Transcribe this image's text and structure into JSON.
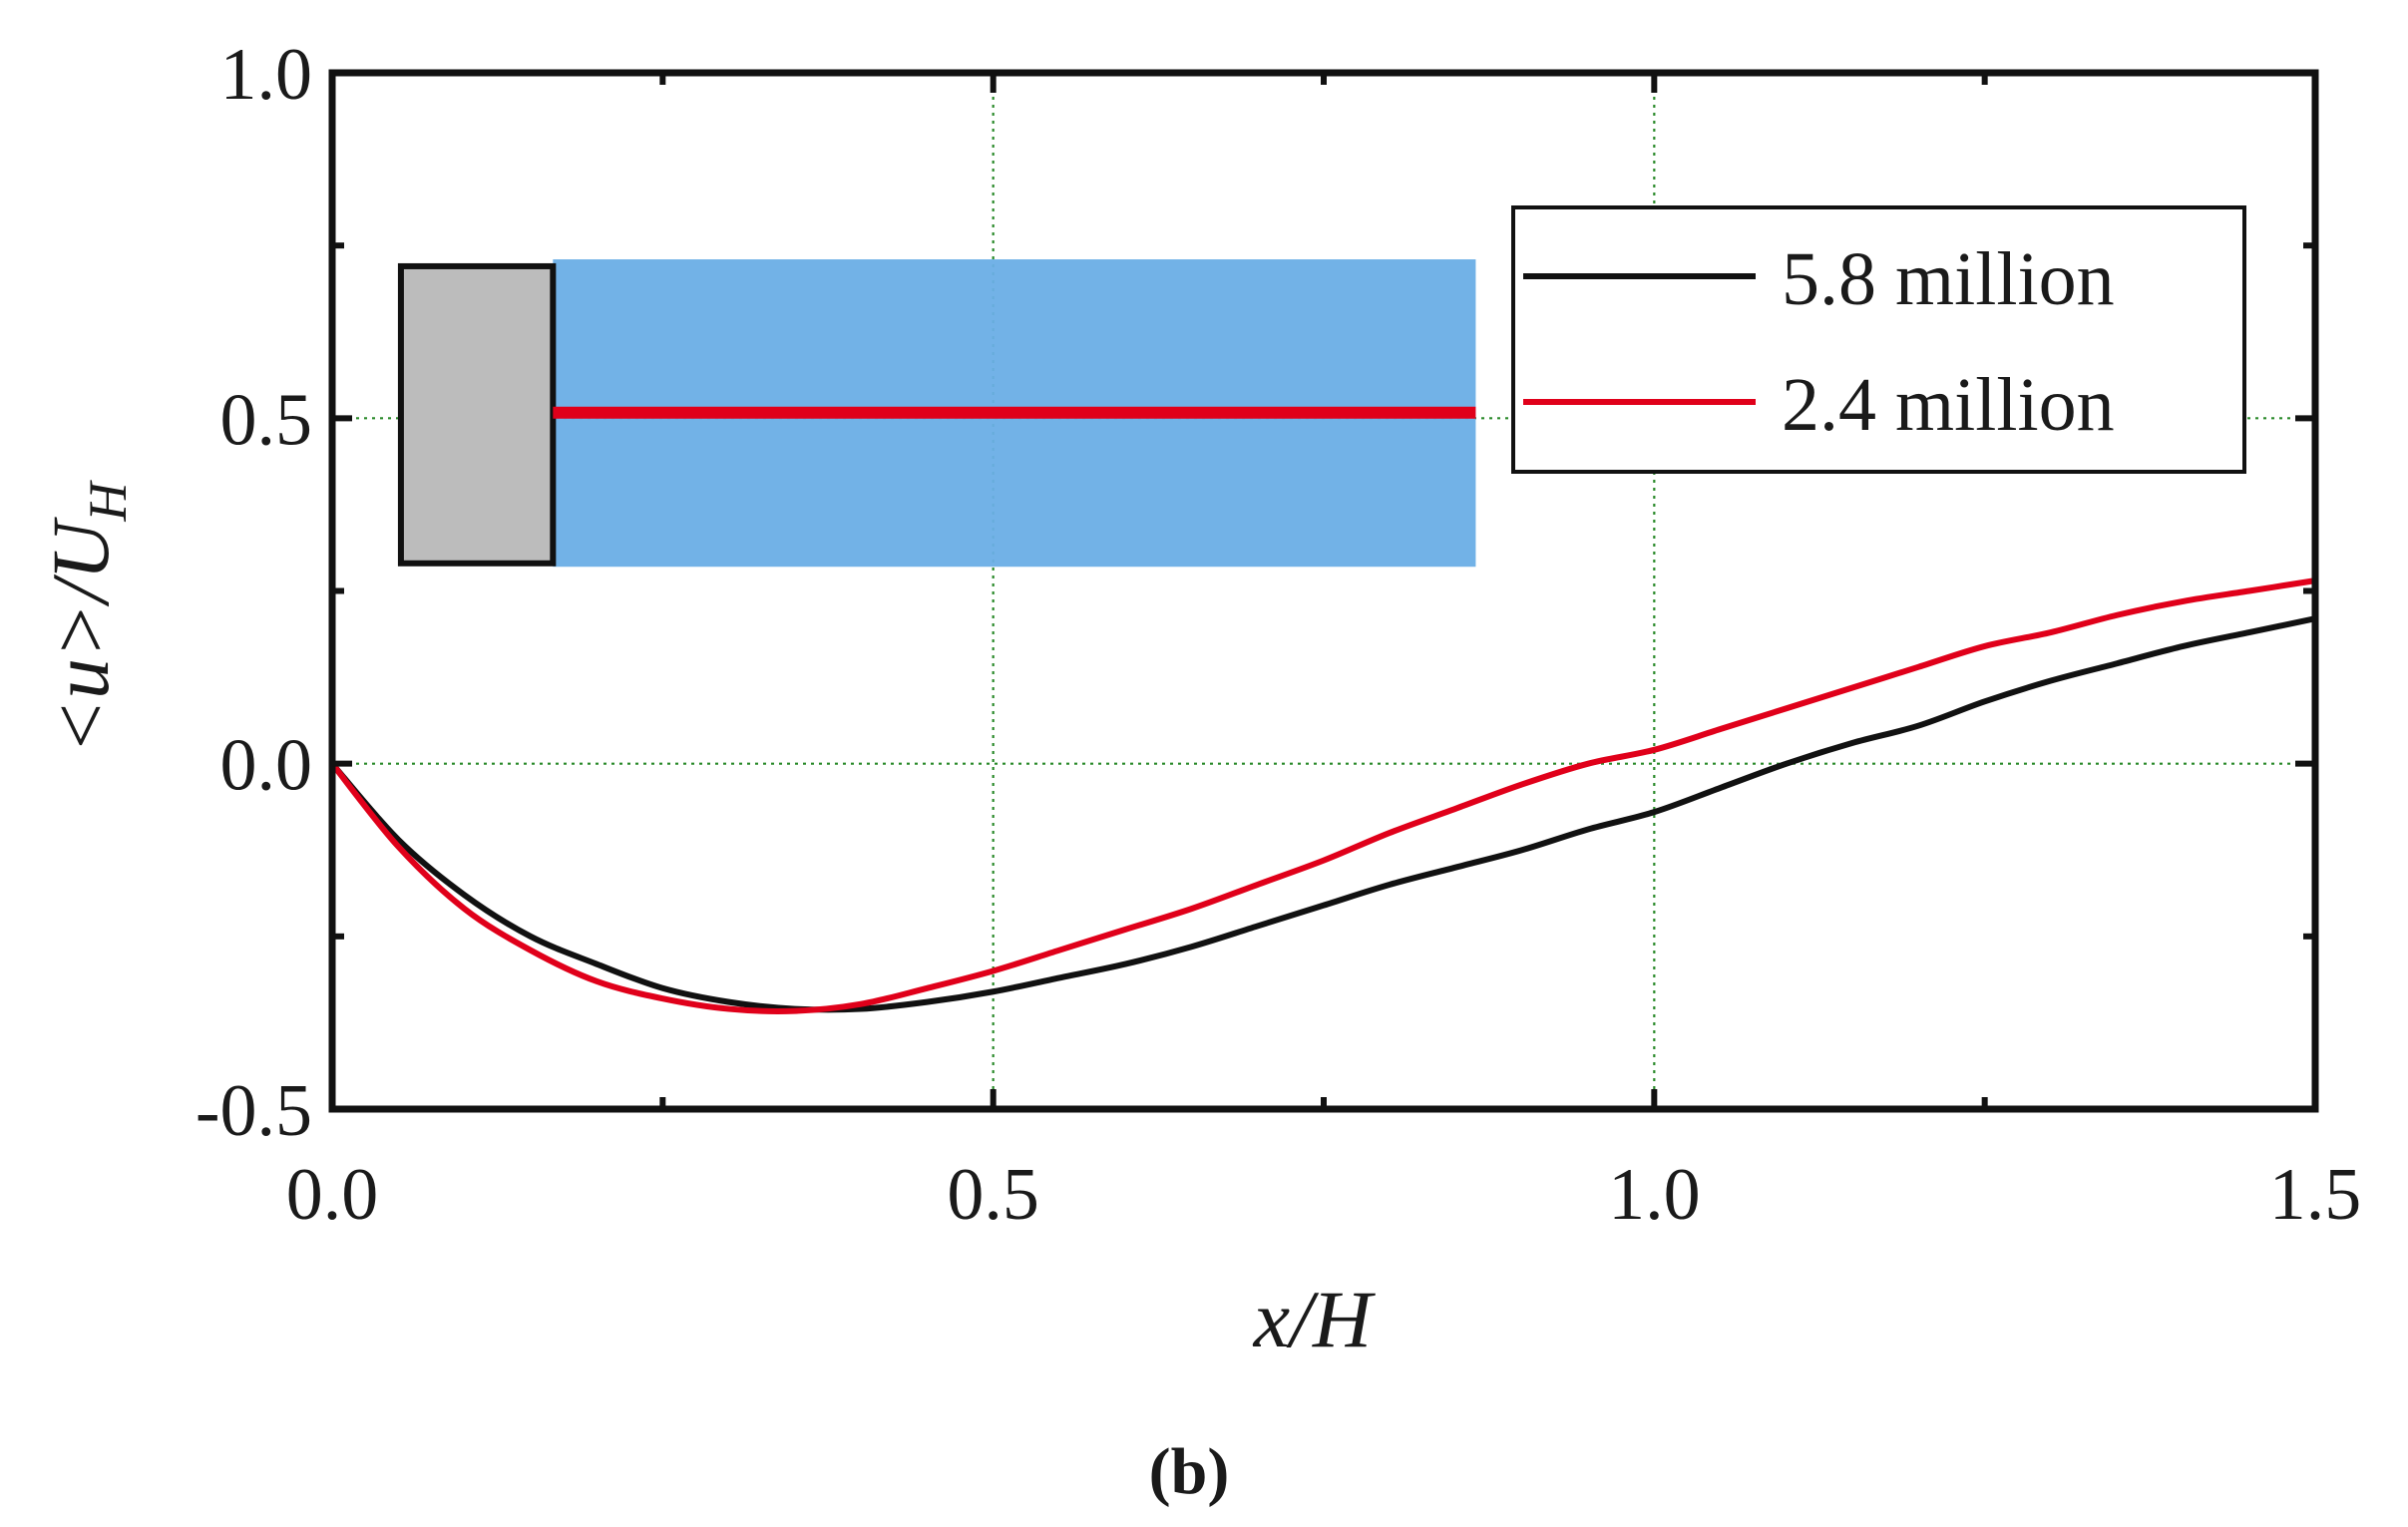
{
  "chart_data": {
    "type": "line",
    "title": "",
    "panel_label": "(b)",
    "xlabel": "x/H",
    "ylabel": "<u>/U_H",
    "ylabel_parts": {
      "main": "<u>/U",
      "sub": "H"
    },
    "xlim": [
      0.0,
      1.5
    ],
    "ylim": [
      -0.5,
      1.0
    ],
    "x_ticks": [
      0.0,
      0.5,
      1.0,
      1.5
    ],
    "x_tick_labels": [
      "0.0",
      "0.5",
      "1.0",
      "1.5"
    ],
    "y_ticks": [
      -0.5,
      0.0,
      0.5,
      1.0
    ],
    "y_tick_labels": [
      "-0.5",
      "0.0",
      "0.5",
      "1.0"
    ],
    "grid": true,
    "legend_position": "top-right",
    "inset": {
      "description": "schematic: grey block with blue wake region and red sampling line",
      "block_color": "#bcbcbc",
      "region_color": "#6aaee6",
      "line_color": "#e0001a"
    },
    "series": [
      {
        "name": "5.8 million",
        "color": "#111111",
        "x": [
          0.0,
          0.05,
          0.1,
          0.15,
          0.2,
          0.25,
          0.3,
          0.35,
          0.4,
          0.45,
          0.5,
          0.55,
          0.6,
          0.65,
          0.7,
          0.75,
          0.8,
          0.85,
          0.9,
          0.95,
          1.0,
          1.05,
          1.1,
          1.15,
          1.2,
          1.25,
          1.3,
          1.35,
          1.4,
          1.45,
          1.5
        ],
        "y": [
          0.0,
          -0.11,
          -0.19,
          -0.25,
          -0.29,
          -0.325,
          -0.345,
          -0.355,
          -0.355,
          -0.345,
          -0.33,
          -0.31,
          -0.29,
          -0.265,
          -0.235,
          -0.205,
          -0.175,
          -0.15,
          -0.125,
          -0.095,
          -0.07,
          -0.035,
          0.0,
          0.03,
          0.055,
          0.09,
          0.12,
          0.145,
          0.17,
          0.19,
          0.21
        ]
      },
      {
        "name": "2.4 million",
        "color": "#e0001a",
        "x": [
          0.0,
          0.05,
          0.1,
          0.15,
          0.2,
          0.25,
          0.3,
          0.35,
          0.4,
          0.45,
          0.5,
          0.55,
          0.6,
          0.65,
          0.7,
          0.75,
          0.8,
          0.85,
          0.9,
          0.95,
          1.0,
          1.05,
          1.1,
          1.15,
          1.2,
          1.25,
          1.3,
          1.35,
          1.4,
          1.45,
          1.5
        ],
        "y": [
          0.0,
          -0.12,
          -0.21,
          -0.27,
          -0.315,
          -0.34,
          -0.355,
          -0.358,
          -0.348,
          -0.325,
          -0.3,
          -0.27,
          -0.24,
          -0.21,
          -0.175,
          -0.14,
          -0.1,
          -0.065,
          -0.03,
          0.0,
          0.02,
          0.05,
          0.08,
          0.11,
          0.14,
          0.17,
          0.19,
          0.215,
          0.235,
          0.25,
          0.265
        ]
      }
    ]
  }
}
